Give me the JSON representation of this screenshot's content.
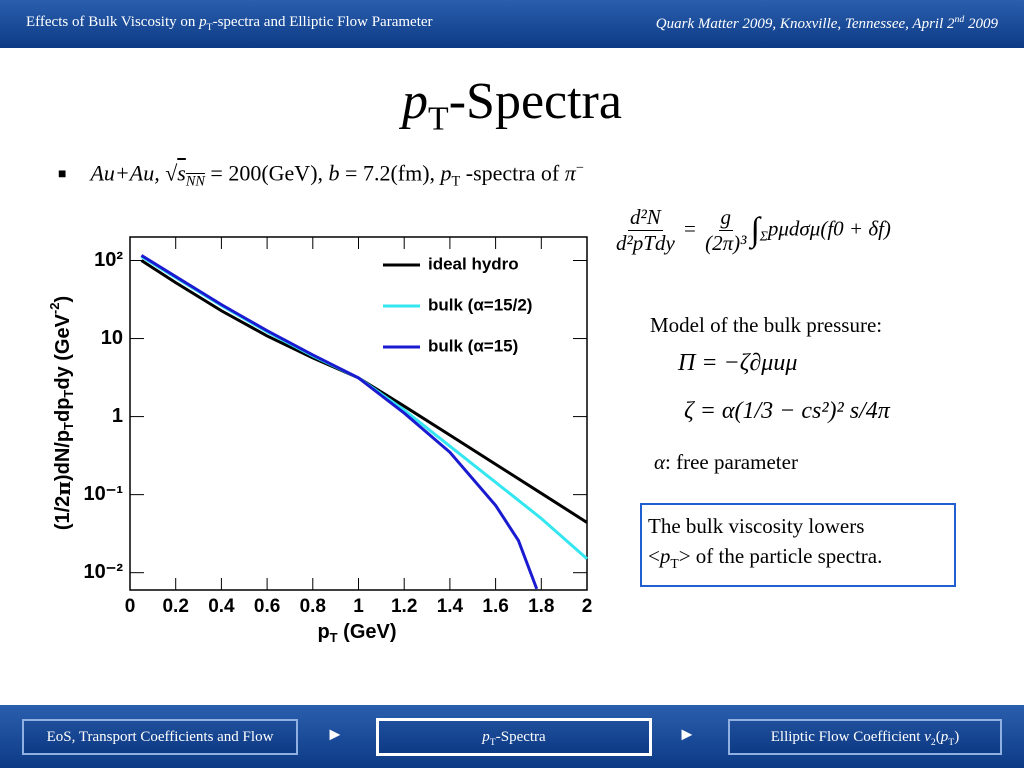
{
  "header": {
    "left": [
      "Effects of Bulk Viscosity on ",
      "p",
      "T",
      "-spectra and Elliptic Flow Parameter"
    ],
    "right": [
      "Quark Matter 2009, Knoxville, Tennessee, April 2",
      "nd",
      " 2009"
    ]
  },
  "title": [
    "p",
    "T",
    "-Spectra"
  ],
  "bullet": [
    "Au+Au, ",
    "√",
    "s",
    "NN",
    " = 200(GeV), ",
    "b",
    " = 7.2(fm), ",
    "p",
    "T",
    " -spectra of ",
    "π",
    "−"
  ],
  "equations": {
    "spectrum": {
      "lhs_num": "d²N",
      "lhs_den": "d²pTdy",
      "eq": "=",
      "rhs_num": "g",
      "rhs_den": "(2π)³",
      "integral": "∫",
      "sub": "Σ",
      "rest": "pμdσμ(f0 + δf)"
    },
    "model_label": "Model of the bulk pressure:",
    "pressure": "Π = −ζ∂μuμ",
    "zeta": "ζ = α(1/3 − cs²)² s/4π",
    "parameter": [
      "α",
      ": free parameter"
    ]
  },
  "note": [
    "The bulk viscosity lowers",
    "<",
    "p",
    "T",
    "> of the particle spectra."
  ],
  "nav": [
    [
      "EoS, Transport Coefficients and Flow"
    ],
    [
      "p",
      "T",
      "-Spectra"
    ],
    [
      "Elliptic Flow Coefficient ",
      "v",
      "2",
      "(",
      "p",
      "T",
      ")"
    ]
  ],
  "chart_data": {
    "type": "line",
    "xlabel": [
      "p",
      "T",
      " (GeV)"
    ],
    "ylabel": [
      "(1/2",
      "π",
      ")dN/p",
      "T",
      "dp",
      "T",
      "dy (GeV",
      "-2",
      ")"
    ],
    "xlim": [
      0,
      2
    ],
    "ylim": [
      0.006,
      200
    ],
    "log_y": true,
    "legend": "upper right",
    "xticks": [
      0,
      0.2,
      0.4,
      0.6,
      0.8,
      1,
      1.2,
      1.4,
      1.6,
      1.8,
      2
    ],
    "yticks": [
      {
        "value": 0.01,
        "label": "10⁻²"
      },
      {
        "value": 0.1,
        "label": "10⁻¹"
      },
      1,
      10,
      {
        "value": 100,
        "label": "10²"
      }
    ],
    "series": [
      {
        "name": "ideal hydro",
        "color": "#000000",
        "x": [
          0.05,
          0.2,
          0.4,
          0.6,
          0.8,
          1.0,
          1.2,
          1.4,
          1.6,
          1.8,
          2.0
        ],
        "values": [
          100,
          52.1,
          22.7,
          10.8,
          5.65,
          3.13,
          1.36,
          0.578,
          0.245,
          0.104,
          0.044
        ]
      },
      {
        "name": "bulk (α=15/2)",
        "color": "#33e6f0",
        "x": [
          0.05,
          0.2,
          0.4,
          0.6,
          0.8,
          1.0,
          1.2,
          1.4,
          1.6,
          1.8,
          2.0
        ],
        "values": [
          112,
          60.4,
          26.4,
          12.2,
          6.0,
          3.13,
          1.21,
          0.418,
          0.144,
          0.0495,
          0.0151
        ]
      },
      {
        "name": "bulk (α=15)",
        "color": "#1a1ad0",
        "x": [
          0.05,
          0.2,
          0.4,
          0.6,
          0.8,
          1.0,
          1.2,
          1.4,
          1.6,
          1.7,
          1.78
        ],
        "values": [
          116,
          62.2,
          27.2,
          12.6,
          6.17,
          3.13,
          1.11,
          0.349,
          0.0728,
          0.0258,
          0.0062
        ]
      }
    ]
  }
}
